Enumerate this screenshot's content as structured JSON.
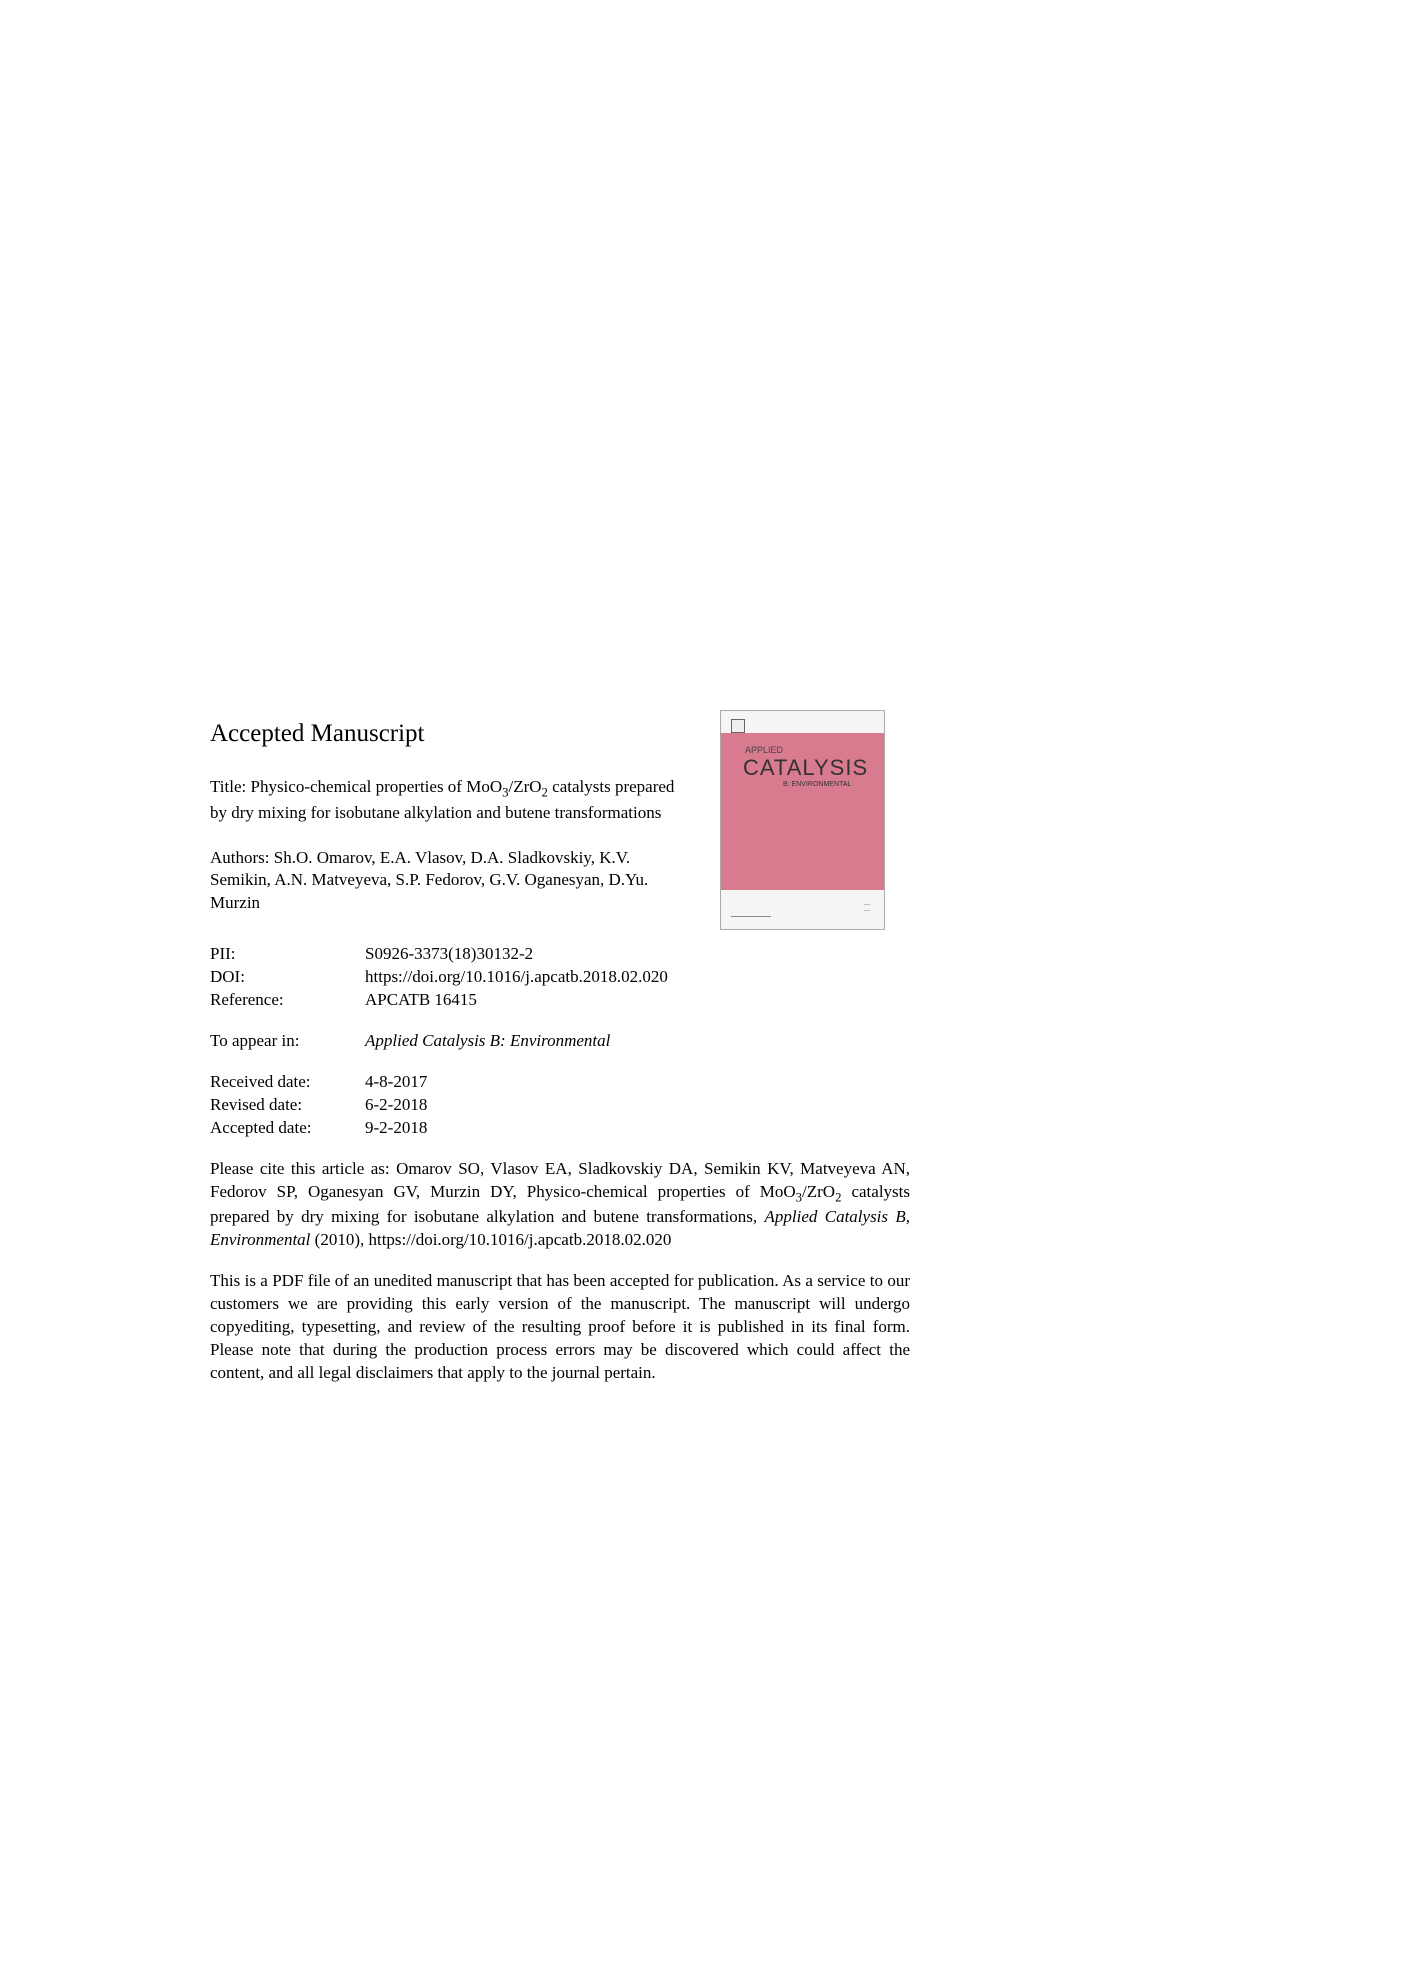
{
  "heading": "Accepted Manuscript",
  "title_prefix": "Title: ",
  "title_part1": "Physico-chemical properties of MoO",
  "title_sub1": "3",
  "title_part2": "/ZrO",
  "title_sub2": "2",
  "title_part3": " catalysts prepared by dry mixing for isobutane alkylation and butene transformations",
  "authors_prefix": "Authors: ",
  "authors": "Sh.O. Omarov, E.A. Vlasov, D.A. Sladkovskiy, K.V. Semikin, A.N. Matveyeva, S.P. Fedorov, G.V. Oganesyan, D.Yu. Murzin",
  "meta": {
    "pii_label": "PII:",
    "pii_value": "S0926-3373(18)30132-2",
    "doi_label": "DOI:",
    "doi_value": "https://doi.org/10.1016/j.apcatb.2018.02.020",
    "ref_label": "Reference:",
    "ref_value": "APCATB 16415",
    "appear_label": "To appear in:",
    "appear_value": "Applied Catalysis B: Environmental",
    "received_label": "Received date:",
    "received_value": "4-8-2017",
    "revised_label": "Revised date:",
    "revised_value": "6-2-2018",
    "accepted_label": "Accepted date:",
    "accepted_value": "9-2-2018"
  },
  "citation_part1": "Please cite this article as: Omarov SO, Vlasov EA, Sladkovskiy DA, Semikin KV, Matveyeva AN, Fedorov SP, Oganesyan GV, Murzin DY, Physico-chemical properties of MoO",
  "citation_sub1": "3",
  "citation_part2": "/ZrO",
  "citation_sub2": "2",
  "citation_part3": " catalysts prepared by dry mixing for isobutane alkylation and butene transformations, ",
  "citation_italic": "Applied Catalysis B, Environmental",
  "citation_part4": " (2010), https://doi.org/10.1016/j.apcatb.2018.02.020",
  "disclaimer": "This is a PDF file of an unedited manuscript that has been accepted for publication. As a service to our customers we are providing this early version of the manuscript. The manuscript will undergo copyediting, typesetting, and review of the resulting proof before it is published in its final form. Please note that during the production process errors may be discovered which could affect the content, and all legal disclaimers that apply to the journal pertain.",
  "cover": {
    "applied": "APPLIED",
    "catalysis": "CATALYSIS",
    "subtitle": "B: ENVIRONMENTAL"
  }
}
